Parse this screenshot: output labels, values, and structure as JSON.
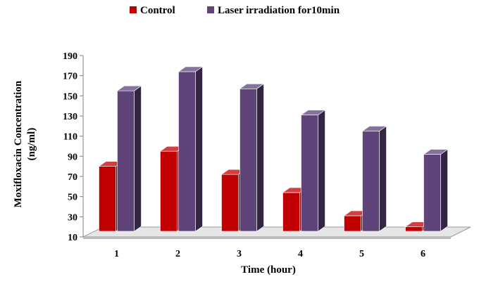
{
  "chart_data": {
    "type": "bar",
    "title": "",
    "xlabel": "Time (hour)",
    "ylabel_lines": [
      "Moxifloxacin Concentration",
      "(ng/ml)"
    ],
    "categories": [
      "1",
      "2",
      "3",
      "4",
      "5",
      "6"
    ],
    "yticks": [
      "10",
      "30",
      "50",
      "70",
      "90",
      "110",
      "130",
      "150",
      "170",
      "190"
    ],
    "ylim": [
      10,
      190
    ],
    "grid": false,
    "legend_position": "top-center",
    "three_d": true,
    "series": [
      {
        "name": "Control",
        "color": "#c00000",
        "values": [
          80,
          95,
          72,
          54,
          31,
          20
        ]
      },
      {
        "name": "Laser irradiation for10min",
        "color": "#5e4479",
        "values": [
          155,
          174,
          157,
          131,
          115,
          92
        ]
      }
    ]
  }
}
